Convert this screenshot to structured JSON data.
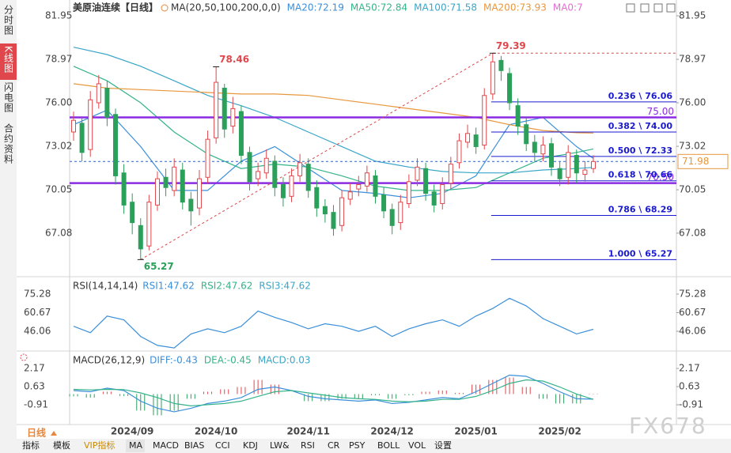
{
  "sidebar": [
    "分时图",
    "K线图",
    "闪电图",
    "合约资料"
  ],
  "timeframe": "日线",
  "toolbar": [
    "指标",
    "模板",
    "VIP指标",
    "MA",
    "MACD",
    "BIAS",
    "CCI",
    "KDJ",
    "LW&",
    "RSI",
    "CR",
    "PSY",
    "BOLL",
    "VOL",
    "设置"
  ],
  "watermark": "FX678",
  "chart_data": [
    {
      "type": "candlestick",
      "title": "美原油连续【日线】",
      "indicator": "MA(20,50,100,200,0,0)",
      "up_color": "#e0474c",
      "down_color": "#2aa05a",
      "open": [
        74.0,
        74.6,
        72.8,
        76.0,
        77.0,
        75.2,
        71.2,
        69.2,
        67.6,
        66.2,
        69.0,
        70.9,
        70.0,
        71.4,
        69.4,
        68.8,
        70.9,
        73.6,
        77.0,
        74.4,
        75.4,
        72.6,
        70.8,
        71.2,
        72.0,
        70.4,
        69.6,
        71.0,
        71.8,
        70.2,
        68.9,
        68.5,
        67.6,
        69.4,
        70.1,
        70.3,
        71.0,
        69.7,
        68.7,
        67.8,
        69.1,
        70.7,
        71.5,
        69.9,
        69.1,
        70.5,
        71.9,
        73.3,
        73.8,
        73.1,
        76.6,
        78.9,
        78.0,
        75.8,
        74.5,
        73.3,
        72.5,
        73.2,
        71.5,
        70.9,
        72.4,
        71.1,
        71.5
      ],
      "high": [
        75.4,
        75.0,
        76.8,
        77.9,
        77.5,
        75.6,
        71.8,
        69.8,
        68.1,
        69.7,
        71.3,
        71.5,
        72.2,
        71.9,
        69.9,
        71.4,
        74.1,
        78.46,
        77.3,
        76.4,
        75.8,
        73.0,
        71.9,
        72.8,
        72.4,
        70.9,
        71.5,
        72.5,
        72.2,
        70.7,
        69.4,
        69.0,
        70.0,
        70.5,
        71.0,
        71.7,
        71.4,
        70.2,
        69.1,
        69.7,
        71.1,
        72.2,
        71.9,
        70.4,
        70.9,
        72.3,
        73.9,
        74.5,
        74.3,
        77.0,
        79.39,
        79.2,
        78.4,
        76.3,
        75.0,
        73.8,
        73.7,
        73.6,
        72.0,
        73.1,
        72.8,
        72.0,
        72.4
      ],
      "low": [
        73.4,
        72.0,
        72.3,
        75.6,
        74.4,
        70.4,
        68.4,
        67.0,
        65.27,
        65.9,
        68.6,
        69.6,
        69.6,
        68.7,
        67.6,
        68.3,
        70.5,
        73.2,
        73.6,
        73.9,
        71.8,
        70.0,
        70.3,
        70.8,
        69.6,
        68.9,
        69.2,
        70.6,
        69.5,
        68.2,
        67.8,
        66.9,
        67.2,
        69.0,
        69.6,
        69.9,
        69.1,
        68.1,
        67.0,
        67.3,
        68.8,
        70.3,
        69.3,
        68.5,
        68.7,
        70.1,
        71.5,
        72.9,
        72.5,
        72.8,
        76.2,
        77.5,
        75.5,
        73.8,
        72.7,
        72.0,
        72.0,
        71.0,
        70.3,
        70.4,
        70.5,
        70.6,
        71.2
      ],
      "close": [
        74.8,
        72.6,
        76.2,
        77.3,
        75.0,
        71.0,
        69.0,
        67.8,
        66.0,
        69.2,
        70.8,
        70.2,
        71.6,
        69.2,
        68.6,
        70.8,
        73.5,
        77.4,
        74.2,
        75.6,
        72.4,
        70.6,
        71.3,
        72.2,
        70.2,
        69.5,
        71.0,
        71.9,
        70.0,
        68.8,
        68.4,
        67.4,
        69.5,
        69.9,
        70.4,
        71.2,
        69.6,
        68.6,
        67.6,
        69.2,
        70.6,
        71.6,
        69.8,
        69.0,
        70.4,
        71.8,
        73.4,
        73.9,
        73.0,
        76.5,
        78.8,
        78.2,
        76.0,
        74.4,
        73.2,
        72.6,
        73.1,
        71.6,
        70.8,
        72.6,
        71.2,
        71.4,
        71.98
      ],
      "xlim": [
        0,
        62
      ],
      "xticks": [
        {
          "value": 7,
          "label": "2024/09"
        },
        {
          "value": 17,
          "label": "2024/10"
        },
        {
          "value": 28,
          "label": "2024/11"
        },
        {
          "value": 38,
          "label": "2024/12"
        },
        {
          "value": 48,
          "label": "2025/01"
        },
        {
          "value": 58,
          "label": "2025/02"
        }
      ],
      "ylim": [
        64.1,
        83.03
      ],
      "yticks": [
        81.95,
        78.97,
        {
          "value": 76.0,
          "label": "76.00"
        },
        73.02,
        70.05,
        67.08
      ],
      "ma_x": [
        0,
        4,
        8,
        12,
        16,
        20,
        24,
        28,
        32,
        36,
        40,
        44,
        48,
        52,
        56,
        60,
        62
      ],
      "series": [
        {
          "name": "MA20:72.19",
          "color": "#3b8fd9",
          "values": [
            74.5,
            75.5,
            73.0,
            70.0,
            70.0,
            72.0,
            73.0,
            71.5,
            70.0,
            69.8,
            69.5,
            69.8,
            71.0,
            74.5,
            75.0,
            73.0,
            72.19
          ]
        },
        {
          "name": "MA50:72.84",
          "color": "#34b38a",
          "values": [
            78.5,
            77.5,
            76.0,
            74.0,
            72.5,
            71.5,
            71.8,
            71.6,
            71.0,
            70.3,
            70.0,
            70.0,
            70.2,
            71.2,
            72.2,
            72.6,
            72.84
          ]
        },
        {
          "name": "MA100:71.58",
          "color": "#3aa6c9",
          "values": [
            79.8,
            79.3,
            78.5,
            77.5,
            76.5,
            75.8,
            75.0,
            74.0,
            73.0,
            72.0,
            71.6,
            71.3,
            71.2,
            71.2,
            71.4,
            71.5,
            71.58
          ]
        },
        {
          "name": "MA200:73.93",
          "color": "#e8973c",
          "values": [
            77.3,
            77.0,
            76.9,
            76.8,
            76.7,
            76.6,
            76.6,
            76.5,
            76.2,
            75.9,
            75.6,
            75.3,
            75.0,
            74.5,
            74.1,
            73.95,
            73.93
          ]
        }
      ],
      "legend_extra": {
        "name": "MA0:7",
        "color": "#e070d0"
      },
      "horizontal_lines": [
        {
          "value": 75.0,
          "label": "75.00",
          "color": "#8a2be2"
        },
        {
          "value": 70.5,
          "label": "70.50",
          "color": "#8a2be2"
        }
      ],
      "last_price": {
        "value": 71.98,
        "label": "71.98",
        "color": "#e8973c"
      },
      "fibonacci": [
        {
          "value": 76.06,
          "label": "0.236 \\ 76.06"
        },
        {
          "value": 74.0,
          "label": "0.382 \\ 74.00"
        },
        {
          "value": 72.33,
          "label": "0.500 \\ 72.33"
        },
        {
          "value": 70.66,
          "label": "0.618 \\ 70.66"
        },
        {
          "value": 68.29,
          "label": "0.786 \\ 68.29"
        },
        {
          "value": 65.27,
          "label": "1.000 \\ 65.27"
        }
      ],
      "annotations": [
        {
          "x": 17,
          "value": 78.46,
          "color": "#e0474c"
        },
        {
          "x": 50,
          "value": 79.39,
          "color": "#e0474c"
        },
        {
          "x": 8,
          "value": 65.27,
          "color": "#2aa05a"
        }
      ]
    },
    {
      "type": "line",
      "title": "RSI(14,14,14)",
      "xlim": [
        0,
        62
      ],
      "ylim": [
        30.56,
        87.7
      ],
      "yticks": [
        75.28,
        60.67,
        46.06
      ],
      "x": [
        0,
        2,
        4,
        6,
        8,
        10,
        12,
        14,
        16,
        18,
        20,
        22,
        24,
        26,
        28,
        30,
        32,
        34,
        36,
        38,
        40,
        42,
        44,
        46,
        48,
        50,
        52,
        54,
        56,
        58,
        60,
        62
      ],
      "series": [
        {
          "name": "RSI1:47.62",
          "color": "#3b8fd9",
          "values": [
            50,
            45,
            58,
            55,
            42,
            35,
            33,
            44,
            48,
            45,
            50,
            62,
            57,
            53,
            48,
            52,
            50,
            46,
            50,
            42,
            48,
            52,
            55,
            50,
            58,
            64,
            72,
            66,
            56,
            50,
            44,
            47.62
          ]
        }
      ],
      "legend_extra": [
        {
          "name": "RSI2:47.62",
          "color": "#34b38a"
        },
        {
          "name": "RSI3:47.62",
          "color": "#3aa6c9"
        }
      ]
    },
    {
      "type": "macd",
      "title": "MACD(26,12,9)",
      "xlim": [
        0,
        62
      ],
      "ylim": [
        -2.58,
        3.51
      ],
      "yticks": [
        2.17,
        0.63,
        -0.91
      ],
      "x": [
        0,
        2,
        4,
        6,
        8,
        10,
        12,
        14,
        16,
        18,
        20,
        22,
        24,
        26,
        28,
        30,
        32,
        34,
        36,
        38,
        40,
        42,
        44,
        46,
        48,
        50,
        52,
        54,
        56,
        58,
        60,
        62
      ],
      "series": [
        {
          "name": "DIFF:-0.43",
          "color": "#3b8fd9",
          "values": [
            0.3,
            0.2,
            0.5,
            0.3,
            -0.6,
            -1.2,
            -1.5,
            -1.2,
            -0.8,
            -0.6,
            -0.3,
            0.4,
            0.6,
            0.3,
            -0.2,
            -0.4,
            -0.5,
            -0.6,
            -0.5,
            -0.8,
            -0.7,
            -0.5,
            -0.3,
            -0.4,
            0.2,
            0.9,
            1.6,
            1.5,
            0.9,
            0.2,
            -0.4,
            -0.43
          ]
        },
        {
          "name": "DEA:-0.45",
          "color": "#34b38a",
          "values": [
            0.4,
            0.35,
            0.4,
            0.38,
            0.1,
            -0.3,
            -0.8,
            -1.0,
            -0.9,
            -0.8,
            -0.6,
            -0.2,
            0.2,
            0.3,
            0.1,
            -0.1,
            -0.3,
            -0.4,
            -0.45,
            -0.6,
            -0.65,
            -0.6,
            -0.45,
            -0.45,
            -0.2,
            0.3,
            0.9,
            1.2,
            1.1,
            0.6,
            0.0,
            -0.45
          ]
        }
      ],
      "histogram": {
        "name": "MACD:0.03",
        "color": "#3aa6c9",
        "up_color": "#e0474c",
        "down_color": "#2aa05a",
        "values": [
          -0.2,
          -0.3,
          0.2,
          -0.16,
          -1.4,
          -1.8,
          -1.4,
          -0.4,
          0.2,
          0.4,
          0.6,
          1.2,
          0.8,
          0,
          -0.6,
          -0.6,
          -0.4,
          -0.4,
          -0.1,
          -0.4,
          -0.1,
          0.2,
          0.3,
          0.1,
          0.8,
          1.2,
          1.4,
          0.6,
          -0.4,
          -0.8,
          -0.8,
          0.03
        ]
      }
    }
  ]
}
